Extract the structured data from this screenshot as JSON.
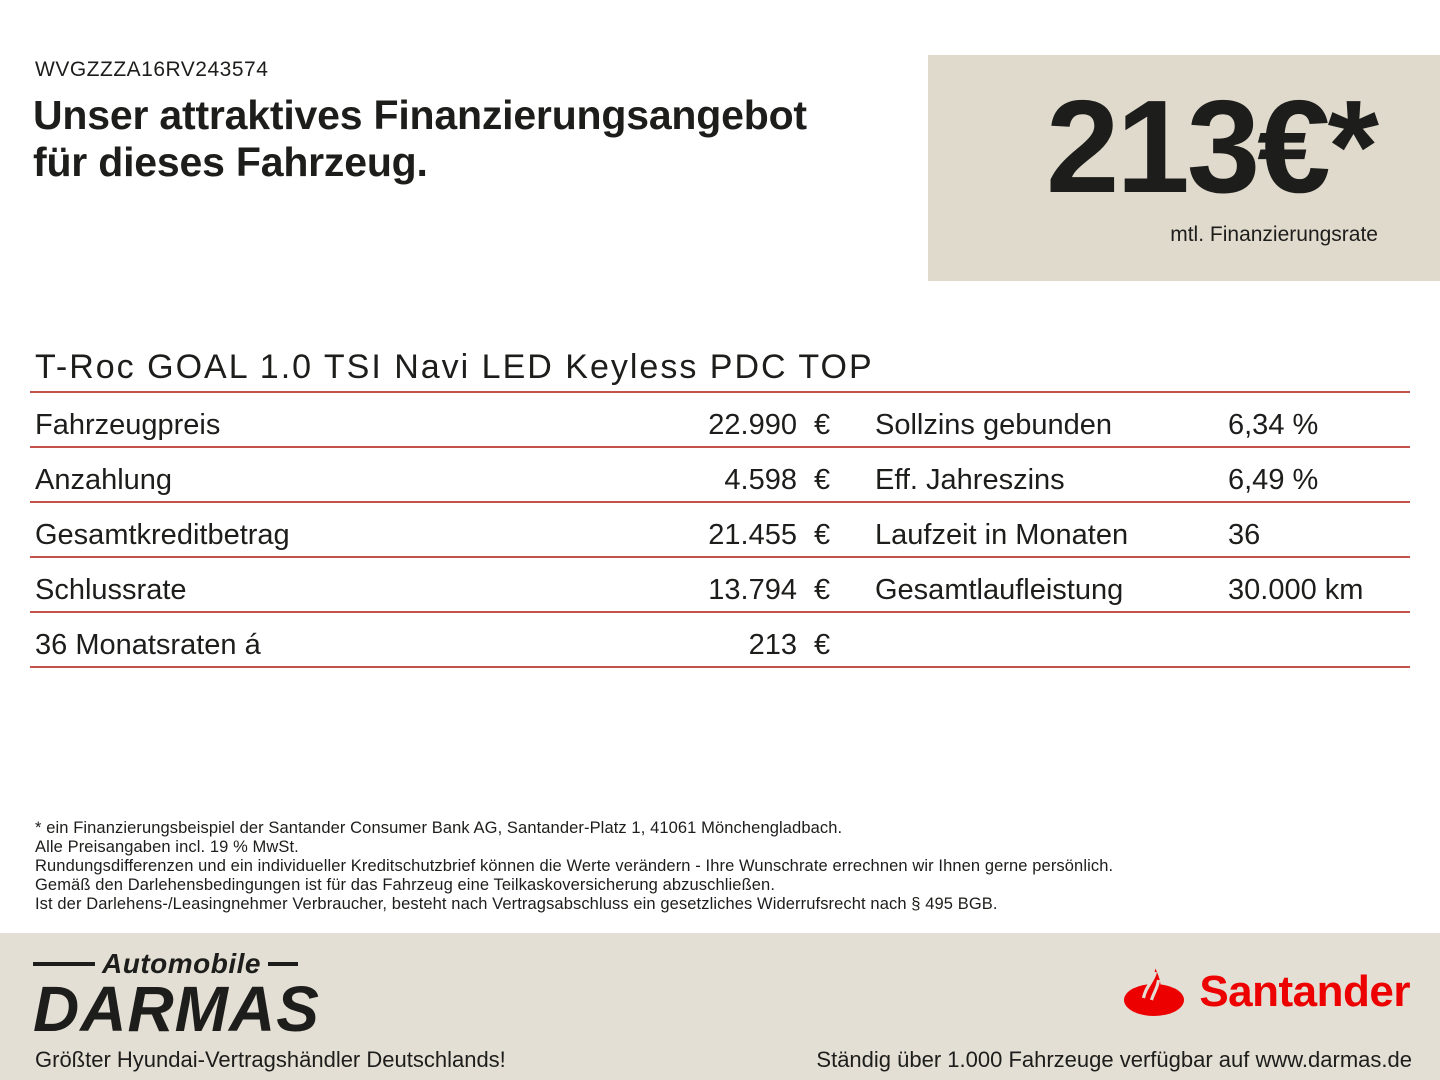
{
  "header": {
    "vin": "WVGZZZA16RV243574",
    "title_line1": "Unser attraktives Finanzierungsangebot",
    "title_line2": "für dieses Fahrzeug."
  },
  "rate_box": {
    "amount": "213€*",
    "caption": "mtl. Finanzierungsrate",
    "bg_color": "#e0dacd"
  },
  "vehicle": {
    "title": "T-Roc GOAL 1.0 TSI Navi LED Keyless PDC TOP"
  },
  "finance_table": {
    "line_color": "#c4524a",
    "left_rows": [
      {
        "label": "Fahrzeugpreis",
        "value": "22.990",
        "unit": "€"
      },
      {
        "label": "Anzahlung",
        "value": "4.598",
        "unit": "€"
      },
      {
        "label": "Gesamtkreditbetrag",
        "value": "21.455",
        "unit": "€"
      },
      {
        "label": "Schlussrate",
        "value": "13.794",
        "unit": "€"
      },
      {
        "label": "36 Monatsraten á",
        "value": "213",
        "unit": "€"
      }
    ],
    "right_rows": [
      {
        "label": "Sollzins gebunden",
        "value": "6,34 %"
      },
      {
        "label": "Eff. Jahreszins",
        "value": "6,49 %"
      },
      {
        "label": "Laufzeit in Monaten",
        "value": "36"
      },
      {
        "label": "Gesamtlaufleistung",
        "value": "30.000 km"
      },
      {
        "label": "",
        "value": ""
      }
    ]
  },
  "footnotes": {
    "lines": [
      "* ein Finanzierungsbeispiel der Santander Consumer Bank AG, Santander-Platz 1, 41061 Mönchengladbach.",
      "Alle Preisangaben incl. 19 % MwSt.",
      "Rundungsdifferenzen und ein individueller Kreditschutzbrief können die Werte verändern - Ihre Wunschrate errechnen wir Ihnen gerne persönlich.",
      "Gemäß den Darlehensbedingungen ist für das Fahrzeug eine Teilkaskoversicherung abzuschließen.",
      "Ist der Darlehens-/Leasingnehmer Verbraucher, besteht nach Vertragsabschluss ein gesetzliches Widerrufsrecht nach § 495 BGB."
    ]
  },
  "footer": {
    "bg_color": "#e4dfd5",
    "dealer_logo": {
      "top": "Automobile",
      "name": "DARMAS"
    },
    "bank_logo": {
      "name": "Santander",
      "color": "#ec0000"
    },
    "tagline_left": "Größter Hyundai-Vertragshändler Deutschlands!",
    "tagline_right": "Ständig über 1.000 Fahrzeuge verfügbar auf www.darmas.de"
  }
}
